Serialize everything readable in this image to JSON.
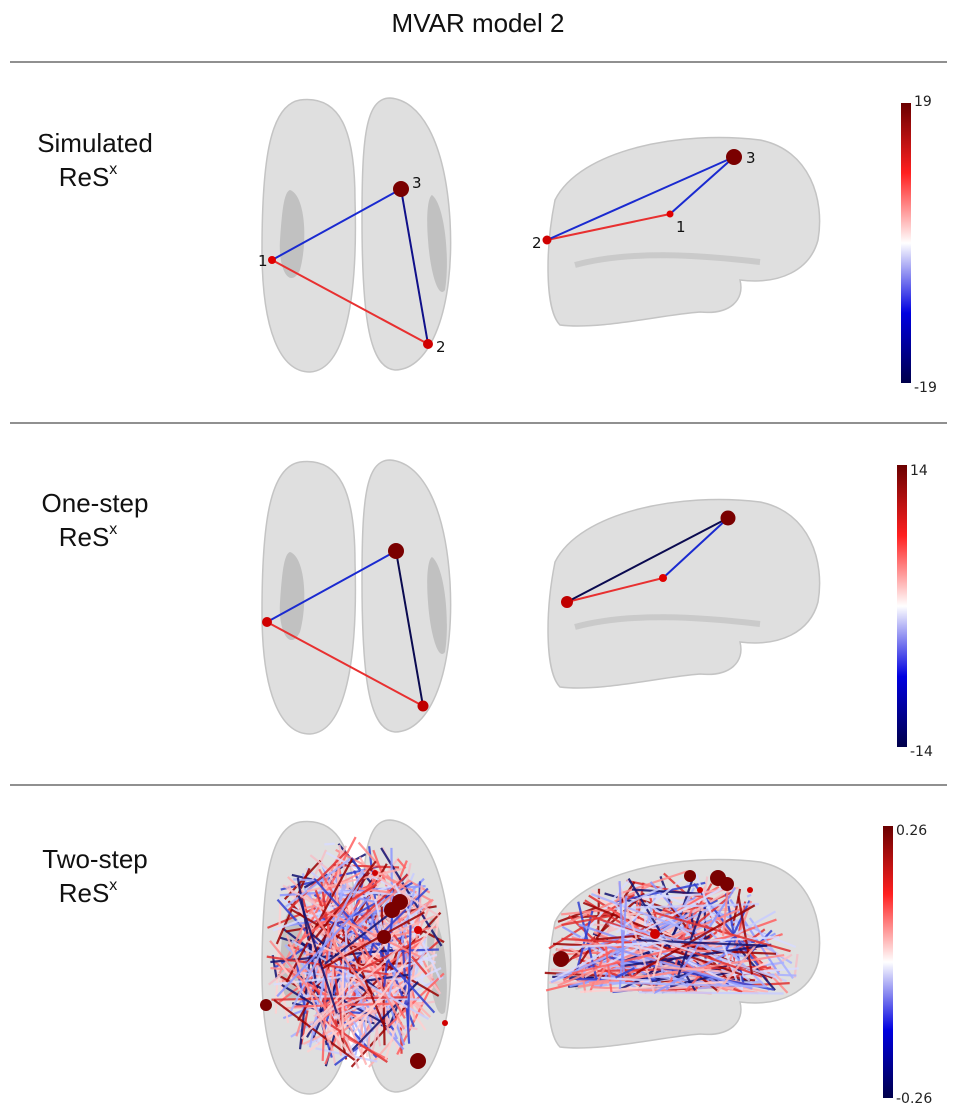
{
  "title": "MVAR model 2",
  "rows": [
    {
      "label": "Simulated",
      "label_sub": "ReS",
      "label_sup": "x",
      "colorbar": {
        "max": 19,
        "min": -19
      },
      "nodes": [
        "1",
        "2",
        "3"
      ]
    },
    {
      "label": "One-step",
      "label_sub": "ReS",
      "label_sup": "x",
      "colorbar": {
        "max": 14,
        "min": -14
      }
    },
    {
      "label": "Two-step",
      "label_sub": "ReS",
      "label_sup": "x",
      "colorbar": {
        "max": 0.26,
        "min": -0.26
      }
    }
  ]
}
